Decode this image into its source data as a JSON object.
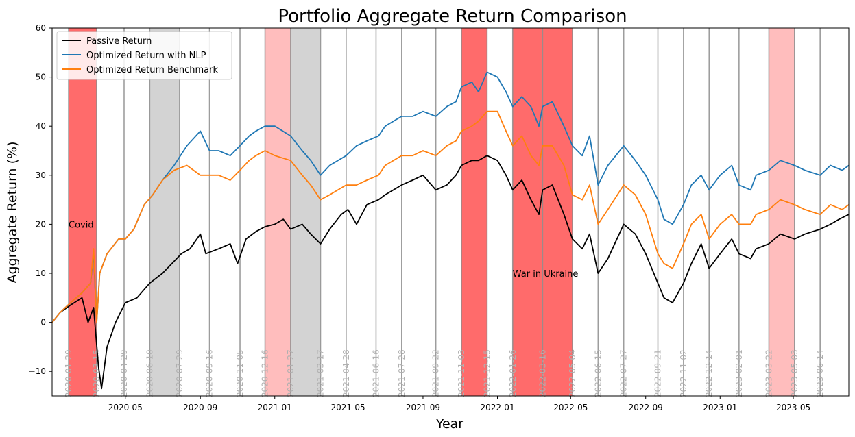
{
  "chart_data": {
    "type": "line",
    "title": "Portfolio Aggregate Return Comparison",
    "xlabel": "Year",
    "ylabel": "Aggregate Return (%)",
    "xlim": [
      "2020-01-02",
      "2023-07-31"
    ],
    "ylim": [
      -15,
      60
    ],
    "y_ticks": [
      -10,
      0,
      10,
      20,
      30,
      40,
      50,
      60
    ],
    "x_ticks": [
      {
        "date": "2020-05-01",
        "label": "2020-05"
      },
      {
        "date": "2020-09-01",
        "label": "2020-09"
      },
      {
        "date": "2021-01-01",
        "label": "2021-01"
      },
      {
        "date": "2021-05-01",
        "label": "2021-05"
      },
      {
        "date": "2021-09-01",
        "label": "2021-09"
      },
      {
        "date": "2022-01-01",
        "label": "2022-01"
      },
      {
        "date": "2022-05-01",
        "label": "2022-05"
      },
      {
        "date": "2022-09-01",
        "label": "2022-09"
      },
      {
        "date": "2023-01-01",
        "label": "2023-01"
      },
      {
        "date": "2023-05-01",
        "label": "2023-05"
      }
    ],
    "grid": false,
    "legend_position": "top-left",
    "event_dates": [
      "2020-01-29",
      "2020-03-15",
      "2020-04-29",
      "2020-06-10",
      "2020-07-29",
      "2020-09-16",
      "2020-11-05",
      "2020-12-16",
      "2021-01-27",
      "2021-03-17",
      "2021-04-28",
      "2021-06-16",
      "2021-07-28",
      "2021-09-22",
      "2021-11-03",
      "2021-12-15",
      "2022-01-26",
      "2022-03-16",
      "2022-05-04",
      "2022-06-15",
      "2022-07-27",
      "2022-09-21",
      "2022-11-02",
      "2022-12-14",
      "2023-02-01",
      "2023-03-22",
      "2023-05-03",
      "2023-06-14"
    ],
    "shaded_regions": [
      {
        "start": "2020-01-29",
        "end": "2020-03-15",
        "color": "#ff6b6b"
      },
      {
        "start": "2020-06-10",
        "end": "2020-07-29",
        "color": "#d3d3d3"
      },
      {
        "start": "2020-12-16",
        "end": "2021-01-27",
        "color": "#ffbdbd"
      },
      {
        "start": "2021-01-27",
        "end": "2021-03-17",
        "color": "#d3d3d3"
      },
      {
        "start": "2021-11-03",
        "end": "2021-12-15",
        "color": "#ff6b6b"
      },
      {
        "start": "2022-01-26",
        "end": "2022-03-16",
        "color": "#ff6b6b"
      },
      {
        "start": "2022-03-16",
        "end": "2022-05-04",
        "color": "#ff6b6b"
      },
      {
        "start": "2023-03-22",
        "end": "2023-05-03",
        "color": "#ffbdbd"
      }
    ],
    "annotations": [
      {
        "text": "Covid",
        "date": "2020-01-29",
        "y": 20
      },
      {
        "text": "War in Ukraine",
        "date": "2022-01-26",
        "y": 10
      }
    ],
    "series": [
      {
        "name": "Passive Return",
        "color": "#000000",
        "points": [
          [
            "2020-01-02",
            0
          ],
          [
            "2020-01-15",
            2
          ],
          [
            "2020-02-01",
            3.5
          ],
          [
            "2020-02-20",
            5
          ],
          [
            "2020-03-01",
            0
          ],
          [
            "2020-03-10",
            3
          ],
          [
            "2020-03-18",
            -9
          ],
          [
            "2020-03-23",
            -13.5
          ],
          [
            "2020-04-01",
            -5
          ],
          [
            "2020-04-15",
            0
          ],
          [
            "2020-05-01",
            4
          ],
          [
            "2020-05-20",
            5
          ],
          [
            "2020-06-10",
            8
          ],
          [
            "2020-07-01",
            10
          ],
          [
            "2020-08-01",
            14
          ],
          [
            "2020-08-15",
            15
          ],
          [
            "2020-09-01",
            18
          ],
          [
            "2020-09-10",
            14
          ],
          [
            "2020-10-01",
            15
          ],
          [
            "2020-10-20",
            16
          ],
          [
            "2020-11-01",
            12
          ],
          [
            "2020-11-15",
            17
          ],
          [
            "2020-12-01",
            18.5
          ],
          [
            "2020-12-16",
            19.5
          ],
          [
            "2021-01-01",
            20
          ],
          [
            "2021-01-15",
            21
          ],
          [
            "2021-01-27",
            19
          ],
          [
            "2021-02-15",
            20
          ],
          [
            "2021-03-01",
            18
          ],
          [
            "2021-03-17",
            16
          ],
          [
            "2021-04-01",
            19
          ],
          [
            "2021-04-20",
            22
          ],
          [
            "2021-05-01",
            23
          ],
          [
            "2021-05-15",
            20
          ],
          [
            "2021-06-01",
            24
          ],
          [
            "2021-06-20",
            25
          ],
          [
            "2021-07-01",
            26
          ],
          [
            "2021-07-28",
            28
          ],
          [
            "2021-08-15",
            29
          ],
          [
            "2021-09-01",
            30
          ],
          [
            "2021-09-22",
            27
          ],
          [
            "2021-10-10",
            28
          ],
          [
            "2021-10-25",
            30
          ],
          [
            "2021-11-03",
            32
          ],
          [
            "2021-11-20",
            33
          ],
          [
            "2021-12-01",
            33
          ],
          [
            "2021-12-15",
            34
          ],
          [
            "2022-01-01",
            33
          ],
          [
            "2022-01-15",
            30
          ],
          [
            "2022-01-26",
            27
          ],
          [
            "2022-02-10",
            29
          ],
          [
            "2022-02-25",
            25
          ],
          [
            "2022-03-10",
            22
          ],
          [
            "2022-03-16",
            27
          ],
          [
            "2022-04-01",
            28
          ],
          [
            "2022-04-20",
            22
          ],
          [
            "2022-05-04",
            17
          ],
          [
            "2022-05-20",
            15
          ],
          [
            "2022-06-01",
            18
          ],
          [
            "2022-06-15",
            10
          ],
          [
            "2022-07-01",
            13
          ],
          [
            "2022-07-27",
            20
          ],
          [
            "2022-08-15",
            18
          ],
          [
            "2022-09-01",
            14
          ],
          [
            "2022-09-21",
            8
          ],
          [
            "2022-10-01",
            5
          ],
          [
            "2022-10-15",
            4
          ],
          [
            "2022-11-02",
            8
          ],
          [
            "2022-11-15",
            12
          ],
          [
            "2022-12-01",
            16
          ],
          [
            "2022-12-14",
            11
          ],
          [
            "2023-01-01",
            14
          ],
          [
            "2023-01-20",
            17
          ],
          [
            "2023-02-01",
            14
          ],
          [
            "2023-02-20",
            13
          ],
          [
            "2023-03-01",
            15
          ],
          [
            "2023-03-22",
            16
          ],
          [
            "2023-04-10",
            18
          ],
          [
            "2023-05-03",
            17
          ],
          [
            "2023-05-20",
            18
          ],
          [
            "2023-06-14",
            19
          ],
          [
            "2023-07-01",
            20
          ],
          [
            "2023-07-15",
            21
          ],
          [
            "2023-07-31",
            22
          ]
        ]
      },
      {
        "name": "Optimized Return with NLP",
        "color": "#1f77b4",
        "points": [
          [
            "2020-01-02",
            0
          ],
          [
            "2020-01-15",
            2
          ],
          [
            "2020-02-01",
            4
          ],
          [
            "2020-02-20",
            6
          ],
          [
            "2020-03-05",
            8
          ],
          [
            "2020-03-10",
            14
          ],
          [
            "2020-03-15",
            0
          ],
          [
            "2020-03-20",
            10
          ],
          [
            "2020-04-01",
            14
          ],
          [
            "2020-04-20",
            17
          ],
          [
            "2020-05-01",
            17
          ],
          [
            "2020-05-15",
            19
          ],
          [
            "2020-06-01",
            24
          ],
          [
            "2020-06-15",
            26
          ],
          [
            "2020-07-01",
            29
          ],
          [
            "2020-07-20",
            32
          ],
          [
            "2020-08-10",
            36
          ],
          [
            "2020-09-01",
            39
          ],
          [
            "2020-09-16",
            35
          ],
          [
            "2020-10-01",
            35
          ],
          [
            "2020-10-20",
            34
          ],
          [
            "2020-11-05",
            36
          ],
          [
            "2020-11-20",
            38
          ],
          [
            "2020-12-01",
            39
          ],
          [
            "2020-12-16",
            40
          ],
          [
            "2021-01-01",
            40
          ],
          [
            "2021-01-27",
            38
          ],
          [
            "2021-02-15",
            35
          ],
          [
            "2021-03-01",
            33
          ],
          [
            "2021-03-17",
            30
          ],
          [
            "2021-04-01",
            32
          ],
          [
            "2021-04-28",
            34
          ],
          [
            "2021-05-15",
            36
          ],
          [
            "2021-06-01",
            37
          ],
          [
            "2021-06-20",
            38
          ],
          [
            "2021-07-01",
            40
          ],
          [
            "2021-07-28",
            42
          ],
          [
            "2021-08-15",
            42
          ],
          [
            "2021-09-01",
            43
          ],
          [
            "2021-09-22",
            42
          ],
          [
            "2021-10-10",
            44
          ],
          [
            "2021-10-25",
            45
          ],
          [
            "2021-11-03",
            48
          ],
          [
            "2021-11-20",
            49
          ],
          [
            "2021-12-01",
            47
          ],
          [
            "2021-12-15",
            51
          ],
          [
            "2022-01-01",
            50
          ],
          [
            "2022-01-15",
            47
          ],
          [
            "2022-01-26",
            44
          ],
          [
            "2022-02-10",
            46
          ],
          [
            "2022-02-25",
            44
          ],
          [
            "2022-03-10",
            40
          ],
          [
            "2022-03-16",
            44
          ],
          [
            "2022-04-01",
            45
          ],
          [
            "2022-04-20",
            40
          ],
          [
            "2022-05-04",
            36
          ],
          [
            "2022-05-20",
            34
          ],
          [
            "2022-06-01",
            38
          ],
          [
            "2022-06-15",
            28
          ],
          [
            "2022-07-01",
            32
          ],
          [
            "2022-07-27",
            36
          ],
          [
            "2022-08-15",
            33
          ],
          [
            "2022-09-01",
            30
          ],
          [
            "2022-09-21",
            25
          ],
          [
            "2022-10-01",
            21
          ],
          [
            "2022-10-15",
            20
          ],
          [
            "2022-11-02",
            24
          ],
          [
            "2022-11-15",
            28
          ],
          [
            "2022-12-01",
            30
          ],
          [
            "2022-12-14",
            27
          ],
          [
            "2023-01-01",
            30
          ],
          [
            "2023-01-20",
            32
          ],
          [
            "2023-02-01",
            28
          ],
          [
            "2023-02-20",
            27
          ],
          [
            "2023-03-01",
            30
          ],
          [
            "2023-03-22",
            31
          ],
          [
            "2023-04-10",
            33
          ],
          [
            "2023-05-03",
            32
          ],
          [
            "2023-05-20",
            31
          ],
          [
            "2023-06-14",
            30
          ],
          [
            "2023-07-01",
            32
          ],
          [
            "2023-07-20",
            31
          ],
          [
            "2023-07-31",
            32
          ]
        ]
      },
      {
        "name": "Optimized Return Benchmark",
        "color": "#ff7f0e",
        "points": [
          [
            "2020-01-02",
            0
          ],
          [
            "2020-01-15",
            2
          ],
          [
            "2020-02-01",
            4
          ],
          [
            "2020-02-20",
            6
          ],
          [
            "2020-03-05",
            8
          ],
          [
            "2020-03-10",
            15
          ],
          [
            "2020-03-15",
            0
          ],
          [
            "2020-03-20",
            10
          ],
          [
            "2020-04-01",
            14
          ],
          [
            "2020-04-20",
            17
          ],
          [
            "2020-05-01",
            17
          ],
          [
            "2020-05-15",
            19
          ],
          [
            "2020-06-01",
            24
          ],
          [
            "2020-06-15",
            26
          ],
          [
            "2020-07-01",
            29
          ],
          [
            "2020-07-20",
            31
          ],
          [
            "2020-08-10",
            32
          ],
          [
            "2020-09-01",
            30
          ],
          [
            "2020-09-16",
            30
          ],
          [
            "2020-10-01",
            30
          ],
          [
            "2020-10-20",
            29
          ],
          [
            "2020-11-05",
            31
          ],
          [
            "2020-11-20",
            33
          ],
          [
            "2020-12-01",
            34
          ],
          [
            "2020-12-16",
            35
          ],
          [
            "2021-01-01",
            34
          ],
          [
            "2021-01-27",
            33
          ],
          [
            "2021-02-15",
            30
          ],
          [
            "2021-03-01",
            28
          ],
          [
            "2021-03-17",
            25
          ],
          [
            "2021-04-01",
            26
          ],
          [
            "2021-04-28",
            28
          ],
          [
            "2021-05-15",
            28
          ],
          [
            "2021-06-01",
            29
          ],
          [
            "2021-06-20",
            30
          ],
          [
            "2021-07-01",
            32
          ],
          [
            "2021-07-28",
            34
          ],
          [
            "2021-08-15",
            34
          ],
          [
            "2021-09-01",
            35
          ],
          [
            "2021-09-22",
            34
          ],
          [
            "2021-10-10",
            36
          ],
          [
            "2021-10-25",
            37
          ],
          [
            "2021-11-03",
            39
          ],
          [
            "2021-11-20",
            40
          ],
          [
            "2021-12-01",
            41
          ],
          [
            "2021-12-15",
            43
          ],
          [
            "2022-01-01",
            43
          ],
          [
            "2022-01-15",
            39
          ],
          [
            "2022-01-26",
            36
          ],
          [
            "2022-02-10",
            38
          ],
          [
            "2022-02-25",
            34
          ],
          [
            "2022-03-10",
            32
          ],
          [
            "2022-03-16",
            36
          ],
          [
            "2022-04-01",
            36
          ],
          [
            "2022-04-20",
            32
          ],
          [
            "2022-05-04",
            26
          ],
          [
            "2022-05-20",
            25
          ],
          [
            "2022-06-01",
            28
          ],
          [
            "2022-06-15",
            20
          ],
          [
            "2022-07-01",
            23
          ],
          [
            "2022-07-27",
            28
          ],
          [
            "2022-08-15",
            26
          ],
          [
            "2022-09-01",
            22
          ],
          [
            "2022-09-21",
            14
          ],
          [
            "2022-10-01",
            12
          ],
          [
            "2022-10-15",
            11
          ],
          [
            "2022-11-02",
            16
          ],
          [
            "2022-11-15",
            20
          ],
          [
            "2022-12-01",
            22
          ],
          [
            "2022-12-14",
            17
          ],
          [
            "2023-01-01",
            20
          ],
          [
            "2023-01-20",
            22
          ],
          [
            "2023-02-01",
            20
          ],
          [
            "2023-02-20",
            20
          ],
          [
            "2023-03-01",
            22
          ],
          [
            "2023-03-22",
            23
          ],
          [
            "2023-04-10",
            25
          ],
          [
            "2023-05-03",
            24
          ],
          [
            "2023-05-20",
            23
          ],
          [
            "2023-06-14",
            22
          ],
          [
            "2023-07-01",
            24
          ],
          [
            "2023-07-20",
            23
          ],
          [
            "2023-07-31",
            24
          ]
        ]
      }
    ]
  }
}
